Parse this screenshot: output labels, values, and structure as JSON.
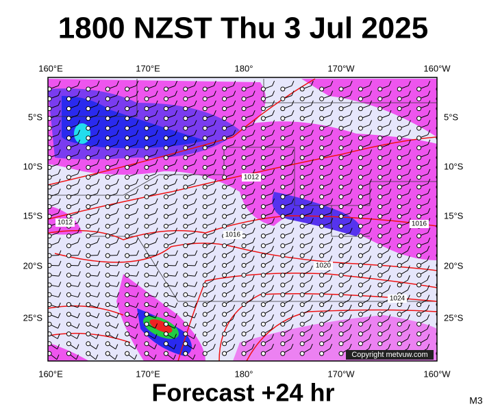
{
  "header": {
    "title": "1800 NZST Thu 3 Jul 2025"
  },
  "map": {
    "lon_labels": [
      "160°E",
      "170°E",
      "180°",
      "170°W",
      "160°W"
    ],
    "lat_labels": [
      "5°S",
      "10°S",
      "15°S",
      "20°S",
      "25°S"
    ],
    "isobar_labels": [
      "1012",
      "1012",
      "1016",
      "1016",
      "1020",
      "1024"
    ],
    "copyright": "Copyright metvuw.com"
  },
  "footer": {
    "forecast": "Forecast +24 hr",
    "code": "M3"
  }
}
